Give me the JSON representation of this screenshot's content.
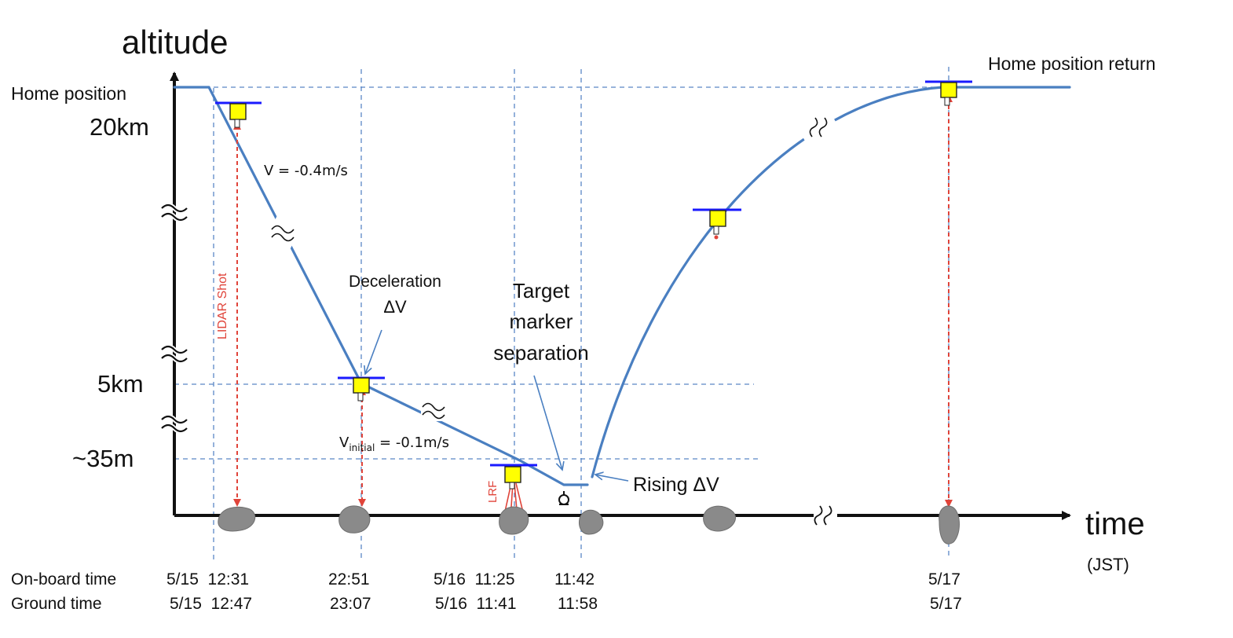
{
  "axes": {
    "y_label": "altitude",
    "x_label": "time",
    "x_unit": "(JST)"
  },
  "altitude_levels": {
    "home": "Home position",
    "km20": "20km",
    "km5": "5km",
    "m35": "~35m"
  },
  "annotations": {
    "home_return": "Home position return",
    "velocity": "V = -0.4m/s",
    "decel_line1": "Deceleration",
    "decel_line2": "ΔV",
    "target_line1": "Target",
    "target_line2": "marker",
    "target_line3": "separation",
    "v_initial_pre": "V",
    "v_initial_sub": "initial",
    "v_initial_post": " = -0.1m/s",
    "rising": "Rising ΔV",
    "lidar": "LIDAR Shot",
    "lrf": "LRF",
    "break_symbol": "≈"
  },
  "timeline": {
    "onboard_label": "On-board time",
    "ground_label": "Ground time",
    "onboard": [
      "5/15  12:31",
      "22:51",
      "5/16  11:25",
      "11:42",
      "5/17"
    ],
    "ground": [
      "5/15  12:47",
      "23:07",
      "5/16  11:41",
      "11:58",
      "5/17"
    ]
  },
  "colors": {
    "trajectory": "#4a7fc1",
    "guide": "#5b87c5",
    "axis": "#111111",
    "lidar": "#e0443a",
    "spacecraft_body": "#ffff00",
    "panel": "#1a1aff",
    "asteroid": "#8a8a8a"
  }
}
